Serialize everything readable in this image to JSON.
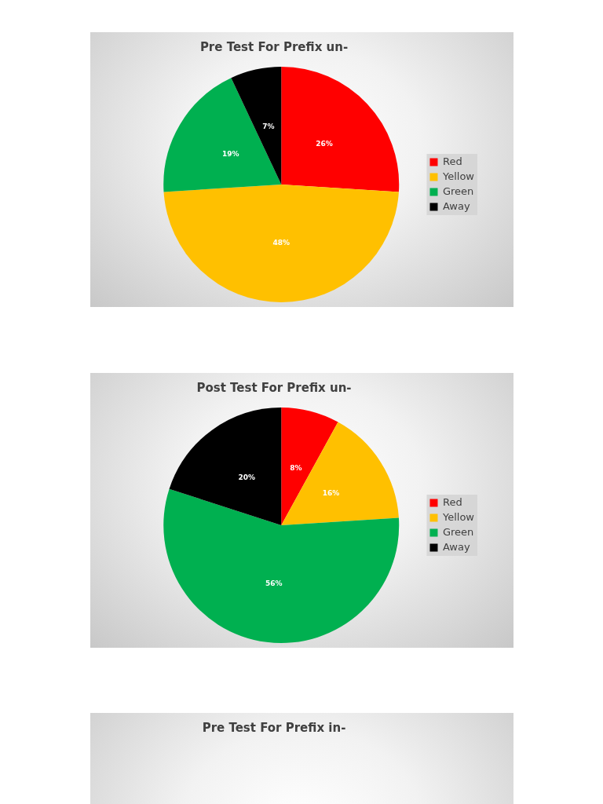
{
  "chart_data": [
    {
      "type": "pie",
      "title": "Pre Test For Prefix un-",
      "categories": [
        "Red",
        "Yellow",
        "Green",
        "Away"
      ],
      "values": [
        26,
        48,
        19,
        7
      ],
      "colors": [
        "#ff0000",
        "#ffc000",
        "#00b050",
        "#000000"
      ],
      "value_labels": [
        "26%",
        "48%",
        "19%",
        "7%"
      ],
      "legend": "right"
    },
    {
      "type": "pie",
      "title": "Post Test For Prefix un-",
      "categories": [
        "Red",
        "Yellow",
        "Green",
        "Away"
      ],
      "values": [
        8,
        16,
        56,
        20
      ],
      "colors": [
        "#ff0000",
        "#ffc000",
        "#00b050",
        "#000000"
      ],
      "value_labels": [
        "8%",
        "16%",
        "56%",
        "20%"
      ],
      "legend": "right"
    },
    {
      "type": "other",
      "title": "Pre Test For Prefix in-"
    }
  ]
}
